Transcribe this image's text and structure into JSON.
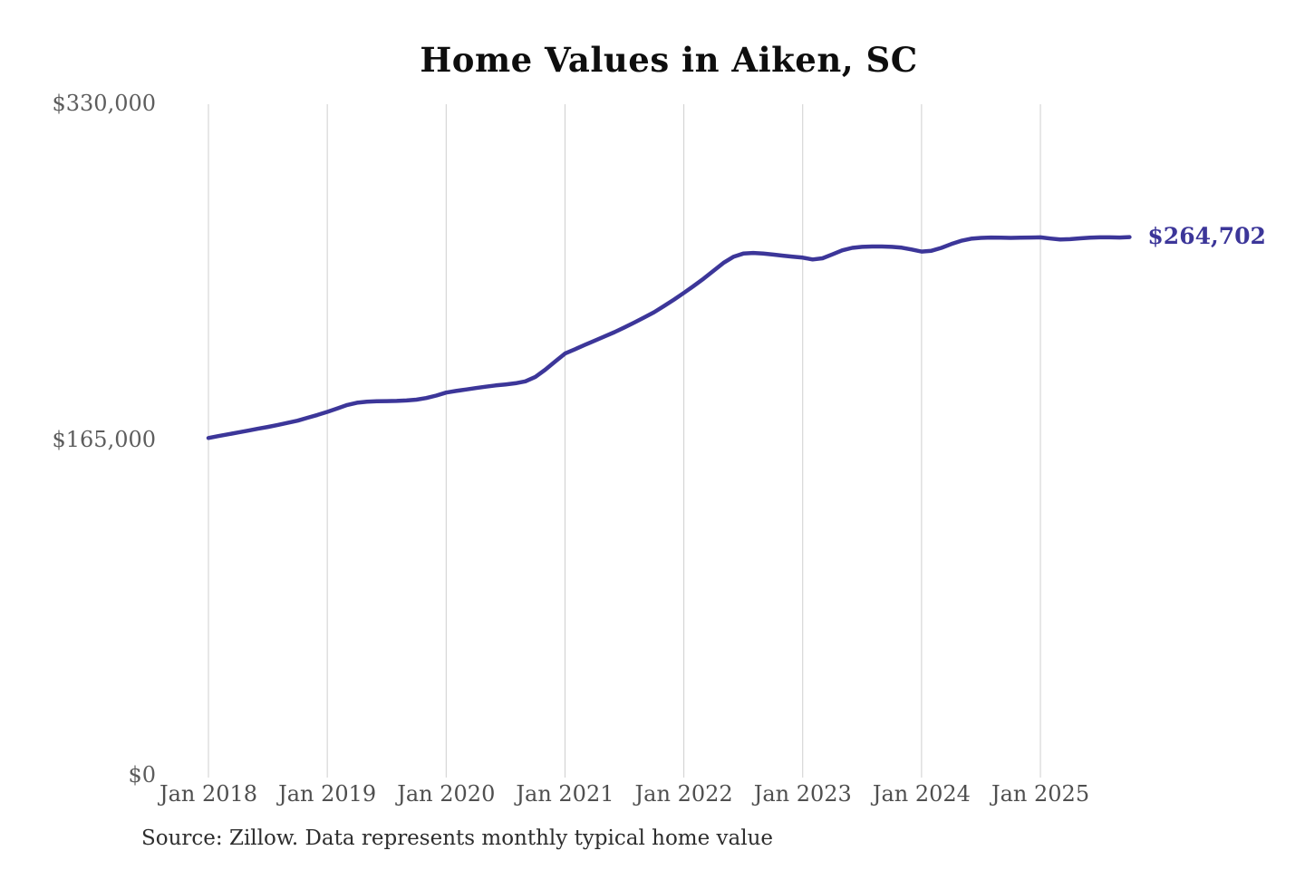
{
  "title": "Home Values in Aiken, SC",
  "source_note": "Source: Zillow. Data represents monthly typical home value",
  "annotation": {
    "end_value_label": "$264,702"
  },
  "chart_data": {
    "type": "line",
    "title": "Home Values in Aiken, SC",
    "xlabel": "",
    "ylabel": "",
    "ylim": [
      0,
      330000
    ],
    "grid": "vertical-only",
    "legend_position": "none",
    "line_color": "#3c3699",
    "grid_color": "#cfcfcf",
    "y_ticks": [
      {
        "value": 330000,
        "label": "$330,000"
      },
      {
        "value": 165000,
        "label": "$165,000"
      },
      {
        "value": 0,
        "label": "$0"
      }
    ],
    "x_ticks": [
      {
        "month_index": 0,
        "label": "Jan 2018"
      },
      {
        "month_index": 12,
        "label": "Jan 2019"
      },
      {
        "month_index": 24,
        "label": "Jan 2020"
      },
      {
        "month_index": 36,
        "label": "Jan 2021"
      },
      {
        "month_index": 48,
        "label": "Jan 2022"
      },
      {
        "month_index": 60,
        "label": "Jan 2023"
      },
      {
        "month_index": 72,
        "label": "Jan 2024"
      },
      {
        "month_index": 84,
        "label": "Jan 2025"
      }
    ],
    "series": [
      {
        "name": "Monthly typical home value",
        "start_month": "Jan 2018",
        "end_month": "Oct 2025",
        "values": [
          166000,
          166900,
          167800,
          168700,
          169600,
          170500,
          171400,
          172400,
          173400,
          174500,
          175900,
          177300,
          178800,
          180500,
          182200,
          183300,
          183800,
          184000,
          184100,
          184200,
          184400,
          184800,
          185600,
          186800,
          188300,
          189100,
          189800,
          190500,
          191200,
          191800,
          192300,
          192900,
          193800,
          196000,
          199500,
          203500,
          207500,
          209600,
          211700,
          213800,
          215900,
          218000,
          220300,
          222700,
          225200,
          227800,
          230800,
          234000,
          237300,
          240700,
          244300,
          248200,
          252000,
          255000,
          256600,
          256900,
          256600,
          256100,
          255600,
          255100,
          254600,
          253700,
          254300,
          256200,
          258200,
          259400,
          259900,
          260100,
          260100,
          259900,
          259500,
          258600,
          257600,
          258000,
          259400,
          261300,
          262900,
          263900,
          264300,
          264500,
          264400,
          264300,
          264400,
          264500,
          264600,
          264000,
          263500,
          263700,
          264100,
          264400,
          264600,
          264600,
          264500,
          264702
        ]
      }
    ],
    "end_label": "$264,702"
  }
}
